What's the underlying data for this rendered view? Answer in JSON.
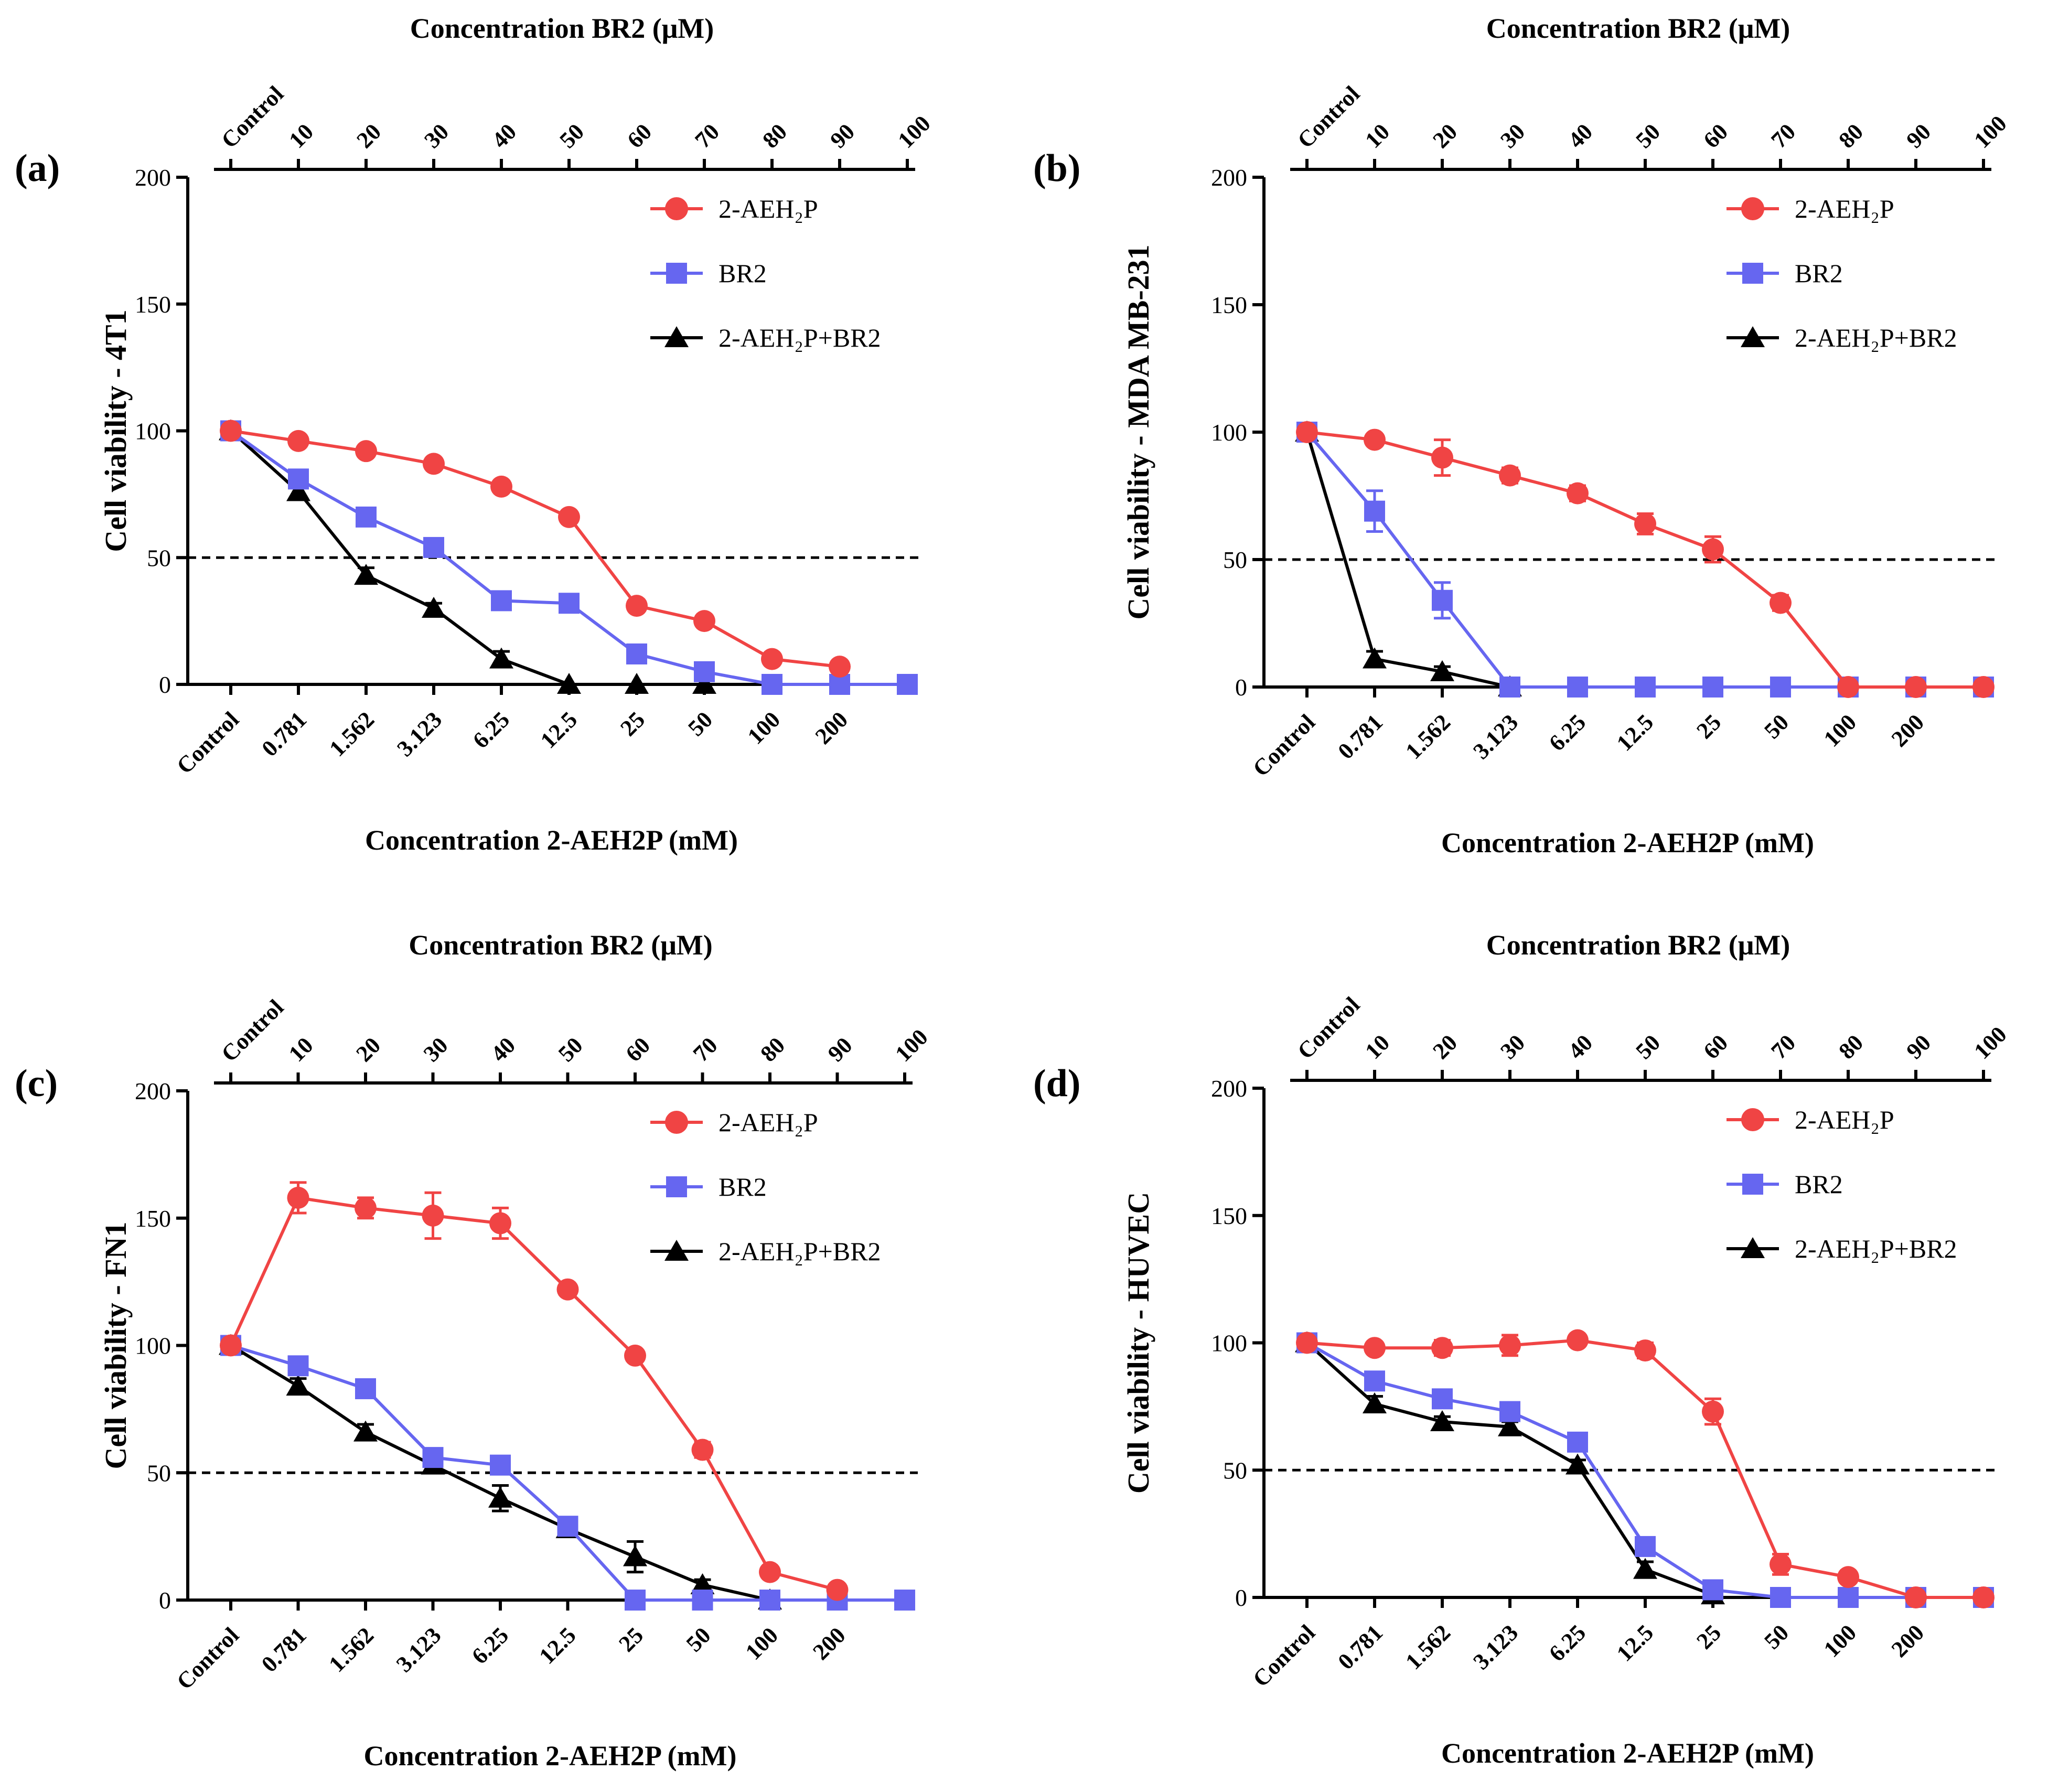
{
  "figure": {
    "panels": [
      {
        "panel_label": "(a)",
        "title": "",
        "ylabel": "Cell viability - 4T1",
        "top_axis_label": "Concentration BR2 (μM)",
        "bottom_axis_label": "Concentration 2-AEH2P (mM)",
        "legend": [
          "2-AEH₂P",
          "BR2",
          "2-AEH₂P+BR2"
        ]
      },
      {
        "panel_label": "(b)",
        "title": "",
        "ylabel": "Cell viability - MDA MB-231",
        "top_axis_label": "Concentration BR2 (μM)",
        "bottom_axis_label": "Concentration 2-AEH2P (mM)",
        "legend": [
          "2-AEH₂P",
          "BR2",
          "2-AEH₂P+BR2"
        ]
      },
      {
        "panel_label": "(c)",
        "title": "",
        "ylabel": "Cell viability - FN1",
        "top_axis_label": "Concentration BR2 (μM)",
        "bottom_axis_label": "Concentration 2-AEH2P (mM)",
        "legend": [
          "2-AEH₂P",
          "BR2",
          "2-AEH₂P+BR2"
        ]
      },
      {
        "panel_label": "(d)",
        "title": "",
        "ylabel": "Cell viability - HUVEC",
        "top_axis_label": "Concentration BR2 (μM)",
        "bottom_axis_label": "Concentration 2-AEH2P (mM)",
        "legend": [
          "2-AEH₂P",
          "BR2",
          "2-AEH₂P+BR2"
        ]
      }
    ],
    "colors": {
      "series_1": "#f04444",
      "series_2": "#6666f0",
      "series_3": "#000000",
      "threshold": "#000000"
    }
  },
  "chart_data": [
    {
      "type": "line",
      "bottom_categories": [
        "Control",
        "0.781",
        "1.562",
        "3.123",
        "6.25",
        "12.5",
        "25",
        "50",
        "100",
        "200",
        ""
      ],
      "top_categories": [
        "Control",
        "10",
        "20",
        "30",
        "40",
        "50",
        "60",
        "70",
        "80",
        "90",
        "100"
      ],
      "ylim": [
        0,
        200
      ],
      "yticks": [
        0,
        50,
        100,
        150,
        200
      ],
      "threshold": 50,
      "grid": false,
      "legend_position": "top-right",
      "series": [
        {
          "name": "2-AEH₂P",
          "marker": "circle",
          "values": [
            100,
            96,
            92,
            87,
            78,
            66,
            31,
            25,
            10,
            7
          ],
          "errors": [
            2,
            2,
            2,
            2,
            2,
            2,
            2,
            2,
            2,
            2
          ]
        },
        {
          "name": "BR2",
          "marker": "square",
          "values": [
            100,
            81,
            66,
            54,
            33,
            32,
            12,
            5,
            0,
            0,
            0
          ],
          "errors": [
            2,
            3,
            2,
            2,
            2,
            2,
            2,
            2,
            0,
            0,
            0
          ]
        },
        {
          "name": "2-AEH₂P+BR2",
          "marker": "triangle",
          "values": [
            100,
            76,
            43,
            30,
            10,
            0,
            0,
            0
          ],
          "errors": [
            2,
            3,
            3,
            2,
            3,
            0,
            0,
            0
          ]
        }
      ]
    },
    {
      "type": "line",
      "bottom_categories": [
        "Control",
        "0.781",
        "1.562",
        "3.123",
        "6.25",
        "12.5",
        "25",
        "50",
        "100",
        "200",
        ""
      ],
      "top_categories": [
        "Control",
        "10",
        "20",
        "30",
        "40",
        "50",
        "60",
        "70",
        "80",
        "90",
        "100"
      ],
      "ylim": [
        0,
        200
      ],
      "yticks": [
        0,
        50,
        100,
        150,
        200
      ],
      "threshold": 50,
      "grid": false,
      "legend_position": "top-right",
      "series": [
        {
          "name": "2-AEH₂P",
          "marker": "circle",
          "values": [
            100,
            97,
            90,
            83,
            76,
            64,
            54,
            33,
            0,
            0,
            0
          ],
          "errors": [
            2,
            2,
            7,
            3,
            3,
            4,
            5,
            3,
            0,
            0,
            0
          ]
        },
        {
          "name": "BR2",
          "marker": "square",
          "values": [
            100,
            69,
            34,
            0,
            0,
            0,
            0,
            0,
            0,
            0,
            0
          ],
          "errors": [
            3,
            8,
            7,
            0,
            0,
            0,
            0,
            0,
            0,
            0,
            0
          ]
        },
        {
          "name": "2-AEH₂P+BR2",
          "marker": "triangle",
          "values": [
            100,
            11,
            6,
            0
          ],
          "errors": [
            2,
            3,
            2,
            0
          ]
        }
      ]
    },
    {
      "type": "line",
      "bottom_categories": [
        "Control",
        "0.781",
        "1.562",
        "3.123",
        "6.25",
        "12.5",
        "25",
        "50",
        "100",
        "200",
        ""
      ],
      "top_categories": [
        "Control",
        "10",
        "20",
        "30",
        "40",
        "50",
        "60",
        "70",
        "80",
        "90",
        "100"
      ],
      "ylim": [
        0,
        200
      ],
      "yticks": [
        0,
        50,
        100,
        150,
        200
      ],
      "threshold": 50,
      "grid": false,
      "legend_position": "top-right",
      "series": [
        {
          "name": "2-AEH₂P",
          "marker": "circle",
          "values": [
            100,
            158,
            154,
            151,
            148,
            122,
            96,
            59,
            11,
            4
          ],
          "errors": [
            2,
            6,
            4,
            9,
            6,
            2,
            2,
            3,
            2,
            2
          ]
        },
        {
          "name": "BR2",
          "marker": "square",
          "values": [
            100,
            92,
            83,
            56,
            53,
            29,
            0,
            0,
            0,
            0,
            0
          ],
          "errors": [
            2,
            3,
            2,
            3,
            3,
            2,
            0,
            0,
            0,
            0,
            0
          ]
        },
        {
          "name": "2-AEH₂P+BR2",
          "marker": "triangle",
          "values": [
            100,
            84,
            66,
            53,
            40,
            28,
            17,
            6,
            0
          ],
          "errors": [
            2,
            3,
            3,
            3,
            5,
            2,
            6,
            2,
            0
          ]
        }
      ]
    },
    {
      "type": "line",
      "bottom_categories": [
        "Control",
        "0.781",
        "1.562",
        "3.123",
        "6.25",
        "12.5",
        "25",
        "50",
        "100",
        "200",
        ""
      ],
      "top_categories": [
        "Control",
        "10",
        "20",
        "30",
        "40",
        "50",
        "60",
        "70",
        "80",
        "90",
        "100"
      ],
      "ylim": [
        0,
        200
      ],
      "yticks": [
        0,
        50,
        100,
        150,
        200
      ],
      "threshold": 50,
      "grid": false,
      "legend_position": "top-right",
      "series": [
        {
          "name": "2-AEH₂P",
          "marker": "circle",
          "values": [
            100,
            98,
            98,
            99,
            101,
            97,
            73,
            13,
            8,
            0,
            0
          ],
          "errors": [
            2,
            2,
            3,
            4,
            2,
            3,
            5,
            4,
            2,
            0,
            0
          ]
        },
        {
          "name": "BR2",
          "marker": "square",
          "values": [
            100,
            85,
            78,
            73,
            61,
            20,
            3,
            0,
            0,
            0,
            0
          ],
          "errors": [
            2,
            3,
            2,
            2,
            3,
            3,
            2,
            0,
            0,
            0,
            0
          ]
        },
        {
          "name": "2-AEH₂P+BR2",
          "marker": "triangle",
          "values": [
            100,
            76,
            69,
            67,
            52,
            11,
            1
          ],
          "errors": [
            2,
            3,
            2,
            2,
            2,
            3,
            2
          ]
        }
      ]
    }
  ]
}
